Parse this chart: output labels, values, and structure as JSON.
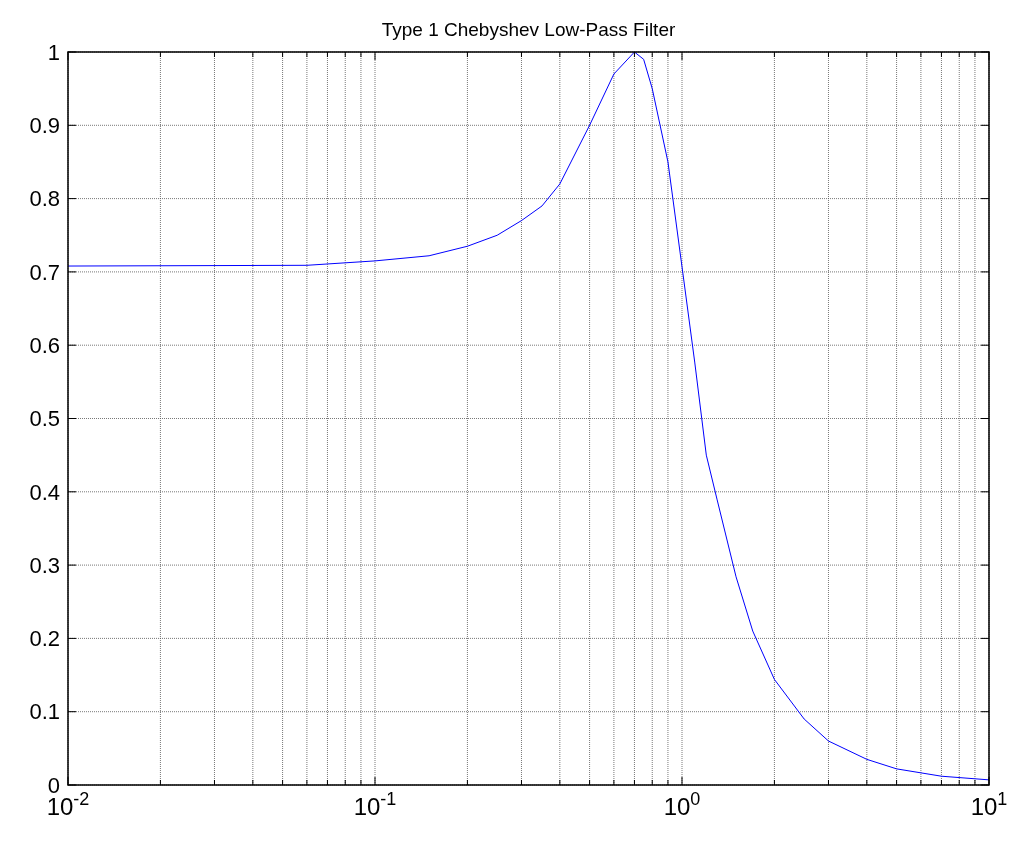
{
  "chart_data": {
    "type": "line",
    "title": "Type 1 Chebyshev Low-Pass Filter",
    "log": "x",
    "grid": true,
    "line_style": "solid",
    "marker": "none",
    "x": [
      0.01,
      0.06,
      0.1,
      0.15,
      0.2,
      0.25,
      0.3,
      0.35,
      0.4,
      0.5,
      0.6,
      0.7,
      0.75,
      0.8,
      0.9,
      1.0,
      1.1,
      1.2,
      1.3,
      1.5,
      1.7,
      2.0,
      2.5,
      3,
      4,
      5,
      7,
      10
    ],
    "series": [
      {
        "color": "#0000ff",
        "values": [
          0.708,
          0.709,
          0.715,
          0.722,
          0.735,
          0.75,
          0.77,
          0.79,
          0.82,
          0.9,
          0.97,
          1.0,
          0.99,
          0.95,
          0.85,
          0.707,
          0.577,
          0.45,
          0.39,
          0.284,
          0.21,
          0.144,
          0.09,
          0.06,
          0.035,
          0.022,
          0.012,
          0.007
        ]
      }
    ],
    "xlim": [
      0.01,
      10
    ],
    "ylim": [
      0,
      1
    ],
    "xticks": [
      {
        "value": 0.01,
        "label": "10$^{-2}$"
      },
      {
        "value": 0.02,
        "label": null
      },
      {
        "value": 0.03,
        "label": null
      },
      {
        "value": 0.04,
        "label": null
      },
      {
        "value": 0.05,
        "label": null
      },
      {
        "value": 0.06,
        "label": null
      },
      {
        "value": 0.07,
        "label": null
      },
      {
        "value": 0.08,
        "label": null
      },
      {
        "value": 0.09,
        "label": null
      },
      {
        "value": 0.1,
        "label": "10$^{-1}$"
      },
      {
        "value": 0.2,
        "label": null
      },
      {
        "value": 0.3,
        "label": null
      },
      {
        "value": 0.4,
        "label": null
      },
      {
        "value": 0.5,
        "label": null
      },
      {
        "value": 0.6,
        "label": null
      },
      {
        "value": 0.7,
        "label": null
      },
      {
        "value": 0.8,
        "label": null
      },
      {
        "value": 0.9,
        "label": null
      },
      {
        "value": 1,
        "label": "10$^{0}$"
      },
      {
        "value": 2,
        "label": null
      },
      {
        "value": 3,
        "label": null
      },
      {
        "value": 4,
        "label": null
      },
      {
        "value": 5,
        "label": null
      },
      {
        "value": 6,
        "label": null
      },
      {
        "value": 7,
        "label": null
      },
      {
        "value": 8,
        "label": null
      },
      {
        "value": 9,
        "label": null
      },
      {
        "value": 10,
        "label": "10$^{1}$"
      }
    ],
    "yticks": [
      0,
      0.1,
      0.2,
      0.3,
      0.4,
      0.5,
      0.6,
      0.7,
      0.8,
      0.9,
      1
    ]
  }
}
